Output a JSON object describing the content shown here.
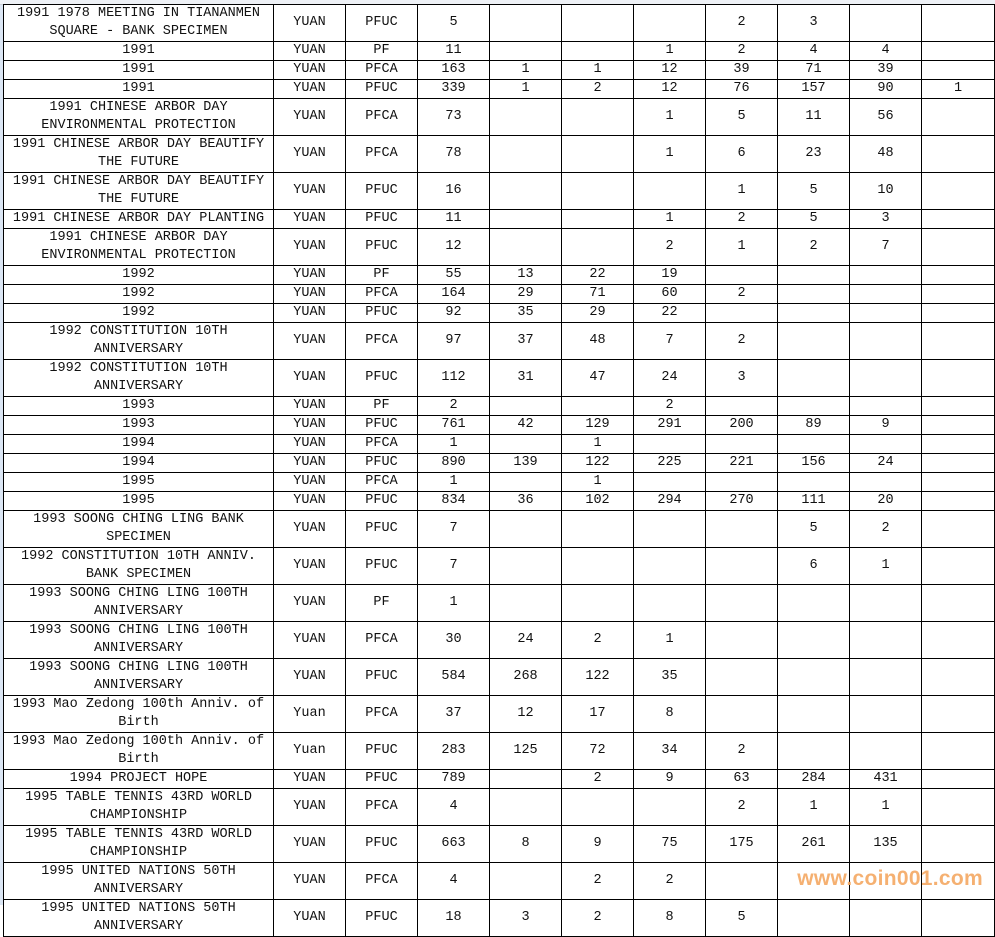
{
  "watermark": "www.coin001.com",
  "rows": [
    {
      "name": "1991 1978 MEETING IN TIANANMEN SQUARE - BANK SPECIMEN",
      "unit": "YUAN",
      "type": "PFUC",
      "values": [
        "5",
        "",
        "",
        "",
        "2",
        "3",
        "",
        ""
      ]
    },
    {
      "name": "1991",
      "unit": "YUAN",
      "type": "PF",
      "values": [
        "11",
        "",
        "",
        "1",
        "2",
        "4",
        "4",
        ""
      ]
    },
    {
      "name": "1991",
      "unit": "YUAN",
      "type": "PFCA",
      "values": [
        "163",
        "1",
        "1",
        "12",
        "39",
        "71",
        "39",
        ""
      ]
    },
    {
      "name": "1991",
      "unit": "YUAN",
      "type": "PFUC",
      "values": [
        "339",
        "1",
        "2",
        "12",
        "76",
        "157",
        "90",
        "1"
      ]
    },
    {
      "name": "1991 CHINESE ARBOR DAY ENVIRONMENTAL PROTECTION",
      "unit": "YUAN",
      "type": "PFCA",
      "values": [
        "73",
        "",
        "",
        "1",
        "5",
        "11",
        "56",
        ""
      ]
    },
    {
      "name": "1991 CHINESE ARBOR DAY BEAUTIFY THE FUTURE",
      "unit": "YUAN",
      "type": "PFCA",
      "values": [
        "78",
        "",
        "",
        "1",
        "6",
        "23",
        "48",
        ""
      ]
    },
    {
      "name": "1991 CHINESE ARBOR DAY BEAUTIFY THE FUTURE",
      "unit": "YUAN",
      "type": "PFUC",
      "values": [
        "16",
        "",
        "",
        "",
        "1",
        "5",
        "10",
        ""
      ]
    },
    {
      "name": "1991 CHINESE ARBOR DAY PLANTING",
      "unit": "YUAN",
      "type": "PFUC",
      "values": [
        "11",
        "",
        "",
        "1",
        "2",
        "5",
        "3",
        ""
      ]
    },
    {
      "name": "1991 CHINESE ARBOR DAY ENVIRONMENTAL PROTECTION",
      "unit": "YUAN",
      "type": "PFUC",
      "values": [
        "12",
        "",
        "",
        "2",
        "1",
        "2",
        "7",
        ""
      ]
    },
    {
      "name": "1992",
      "unit": "YUAN",
      "type": "PF",
      "values": [
        "55",
        "13",
        "22",
        "19",
        "",
        "",
        "",
        ""
      ]
    },
    {
      "name": "1992",
      "unit": "YUAN",
      "type": "PFCA",
      "values": [
        "164",
        "29",
        "71",
        "60",
        "2",
        "",
        "",
        ""
      ]
    },
    {
      "name": "1992",
      "unit": "YUAN",
      "type": "PFUC",
      "values": [
        "92",
        "35",
        "29",
        "22",
        "",
        "",
        "",
        ""
      ]
    },
    {
      "name": "1992 CONSTITUTION 10TH ANNIVERSARY",
      "unit": "YUAN",
      "type": "PFCA",
      "values": [
        "97",
        "37",
        "48",
        "7",
        "2",
        "",
        "",
        ""
      ]
    },
    {
      "name": "1992 CONSTITUTION 10TH ANNIVERSARY",
      "unit": "YUAN",
      "type": "PFUC",
      "values": [
        "112",
        "31",
        "47",
        "24",
        "3",
        "",
        "",
        ""
      ]
    },
    {
      "name": "1993",
      "unit": "YUAN",
      "type": "PF",
      "values": [
        "2",
        "",
        "",
        "2",
        "",
        "",
        "",
        ""
      ]
    },
    {
      "name": "1993",
      "unit": "YUAN",
      "type": "PFUC",
      "values": [
        "761",
        "42",
        "129",
        "291",
        "200",
        "89",
        "9",
        ""
      ]
    },
    {
      "name": "1994",
      "unit": "YUAN",
      "type": "PFCA",
      "values": [
        "1",
        "",
        "1",
        "",
        "",
        "",
        "",
        ""
      ]
    },
    {
      "name": "1994",
      "unit": "YUAN",
      "type": "PFUC",
      "values": [
        "890",
        "139",
        "122",
        "225",
        "221",
        "156",
        "24",
        ""
      ]
    },
    {
      "name": "1995",
      "unit": "YUAN",
      "type": "PFCA",
      "values": [
        "1",
        "",
        "1",
        "",
        "",
        "",
        "",
        ""
      ]
    },
    {
      "name": "1995",
      "unit": "YUAN",
      "type": "PFUC",
      "values": [
        "834",
        "36",
        "102",
        "294",
        "270",
        "111",
        "20",
        ""
      ]
    },
    {
      "name": "1993 SOONG CHING LING BANK SPECIMEN",
      "unit": "YUAN",
      "type": "PFUC",
      "values": [
        "7",
        "",
        "",
        "",
        "",
        "5",
        "2",
        ""
      ]
    },
    {
      "name": "1992 CONSTITUTION 10TH ANNIV. BANK SPECIMEN",
      "unit": "YUAN",
      "type": "PFUC",
      "values": [
        "7",
        "",
        "",
        "",
        "",
        "6",
        "1",
        ""
      ]
    },
    {
      "name": "1993 SOONG CHING LING 100TH ANNIVERSARY",
      "unit": "YUAN",
      "type": "PF",
      "values": [
        "1",
        "",
        "",
        "",
        "",
        "",
        "",
        ""
      ]
    },
    {
      "name": "1993 SOONG CHING LING 100TH ANNIVERSARY",
      "unit": "YUAN",
      "type": "PFCA",
      "values": [
        "30",
        "24",
        "2",
        "1",
        "",
        "",
        "",
        ""
      ]
    },
    {
      "name": "1993 SOONG CHING LING 100TH ANNIVERSARY",
      "unit": "YUAN",
      "type": "PFUC",
      "values": [
        "584",
        "268",
        "122",
        "35",
        "",
        "",
        "",
        ""
      ]
    },
    {
      "name": "1993 Mao Zedong 100th Anniv. of Birth",
      "unit": "Yuan",
      "type": "PFCA",
      "values": [
        "37",
        "12",
        "17",
        "8",
        "",
        "",
        "",
        ""
      ]
    },
    {
      "name": "1993 Mao Zedong 100th Anniv. of Birth",
      "unit": "Yuan",
      "type": "PFUC",
      "values": [
        "283",
        "125",
        "72",
        "34",
        "2",
        "",
        "",
        ""
      ]
    },
    {
      "name": "1994 PROJECT HOPE",
      "unit": "YUAN",
      "type": "PFUC",
      "values": [
        "789",
        "",
        "2",
        "9",
        "63",
        "284",
        "431",
        ""
      ]
    },
    {
      "name": "1995 TABLE TENNIS 43RD WORLD CHAMPIONSHIP",
      "unit": "YUAN",
      "type": "PFCA",
      "values": [
        "4",
        "",
        "",
        "",
        "2",
        "1",
        "1",
        ""
      ]
    },
    {
      "name": "1995 TABLE TENNIS 43RD WORLD CHAMPIONSHIP",
      "unit": "YUAN",
      "type": "PFUC",
      "values": [
        "663",
        "8",
        "9",
        "75",
        "175",
        "261",
        "135",
        ""
      ]
    },
    {
      "name": "1995 UNITED NATIONS 50TH ANNIVERSARY",
      "unit": "YUAN",
      "type": "PFCA",
      "values": [
        "4",
        "",
        "2",
        "2",
        "",
        "",
        "",
        ""
      ]
    },
    {
      "name": "1995 UNITED NATIONS 50TH ANNIVERSARY",
      "unit": "YUAN",
      "type": "PFUC",
      "values": [
        "18",
        "3",
        "2",
        "8",
        "5",
        "",
        "",
        ""
      ]
    }
  ]
}
